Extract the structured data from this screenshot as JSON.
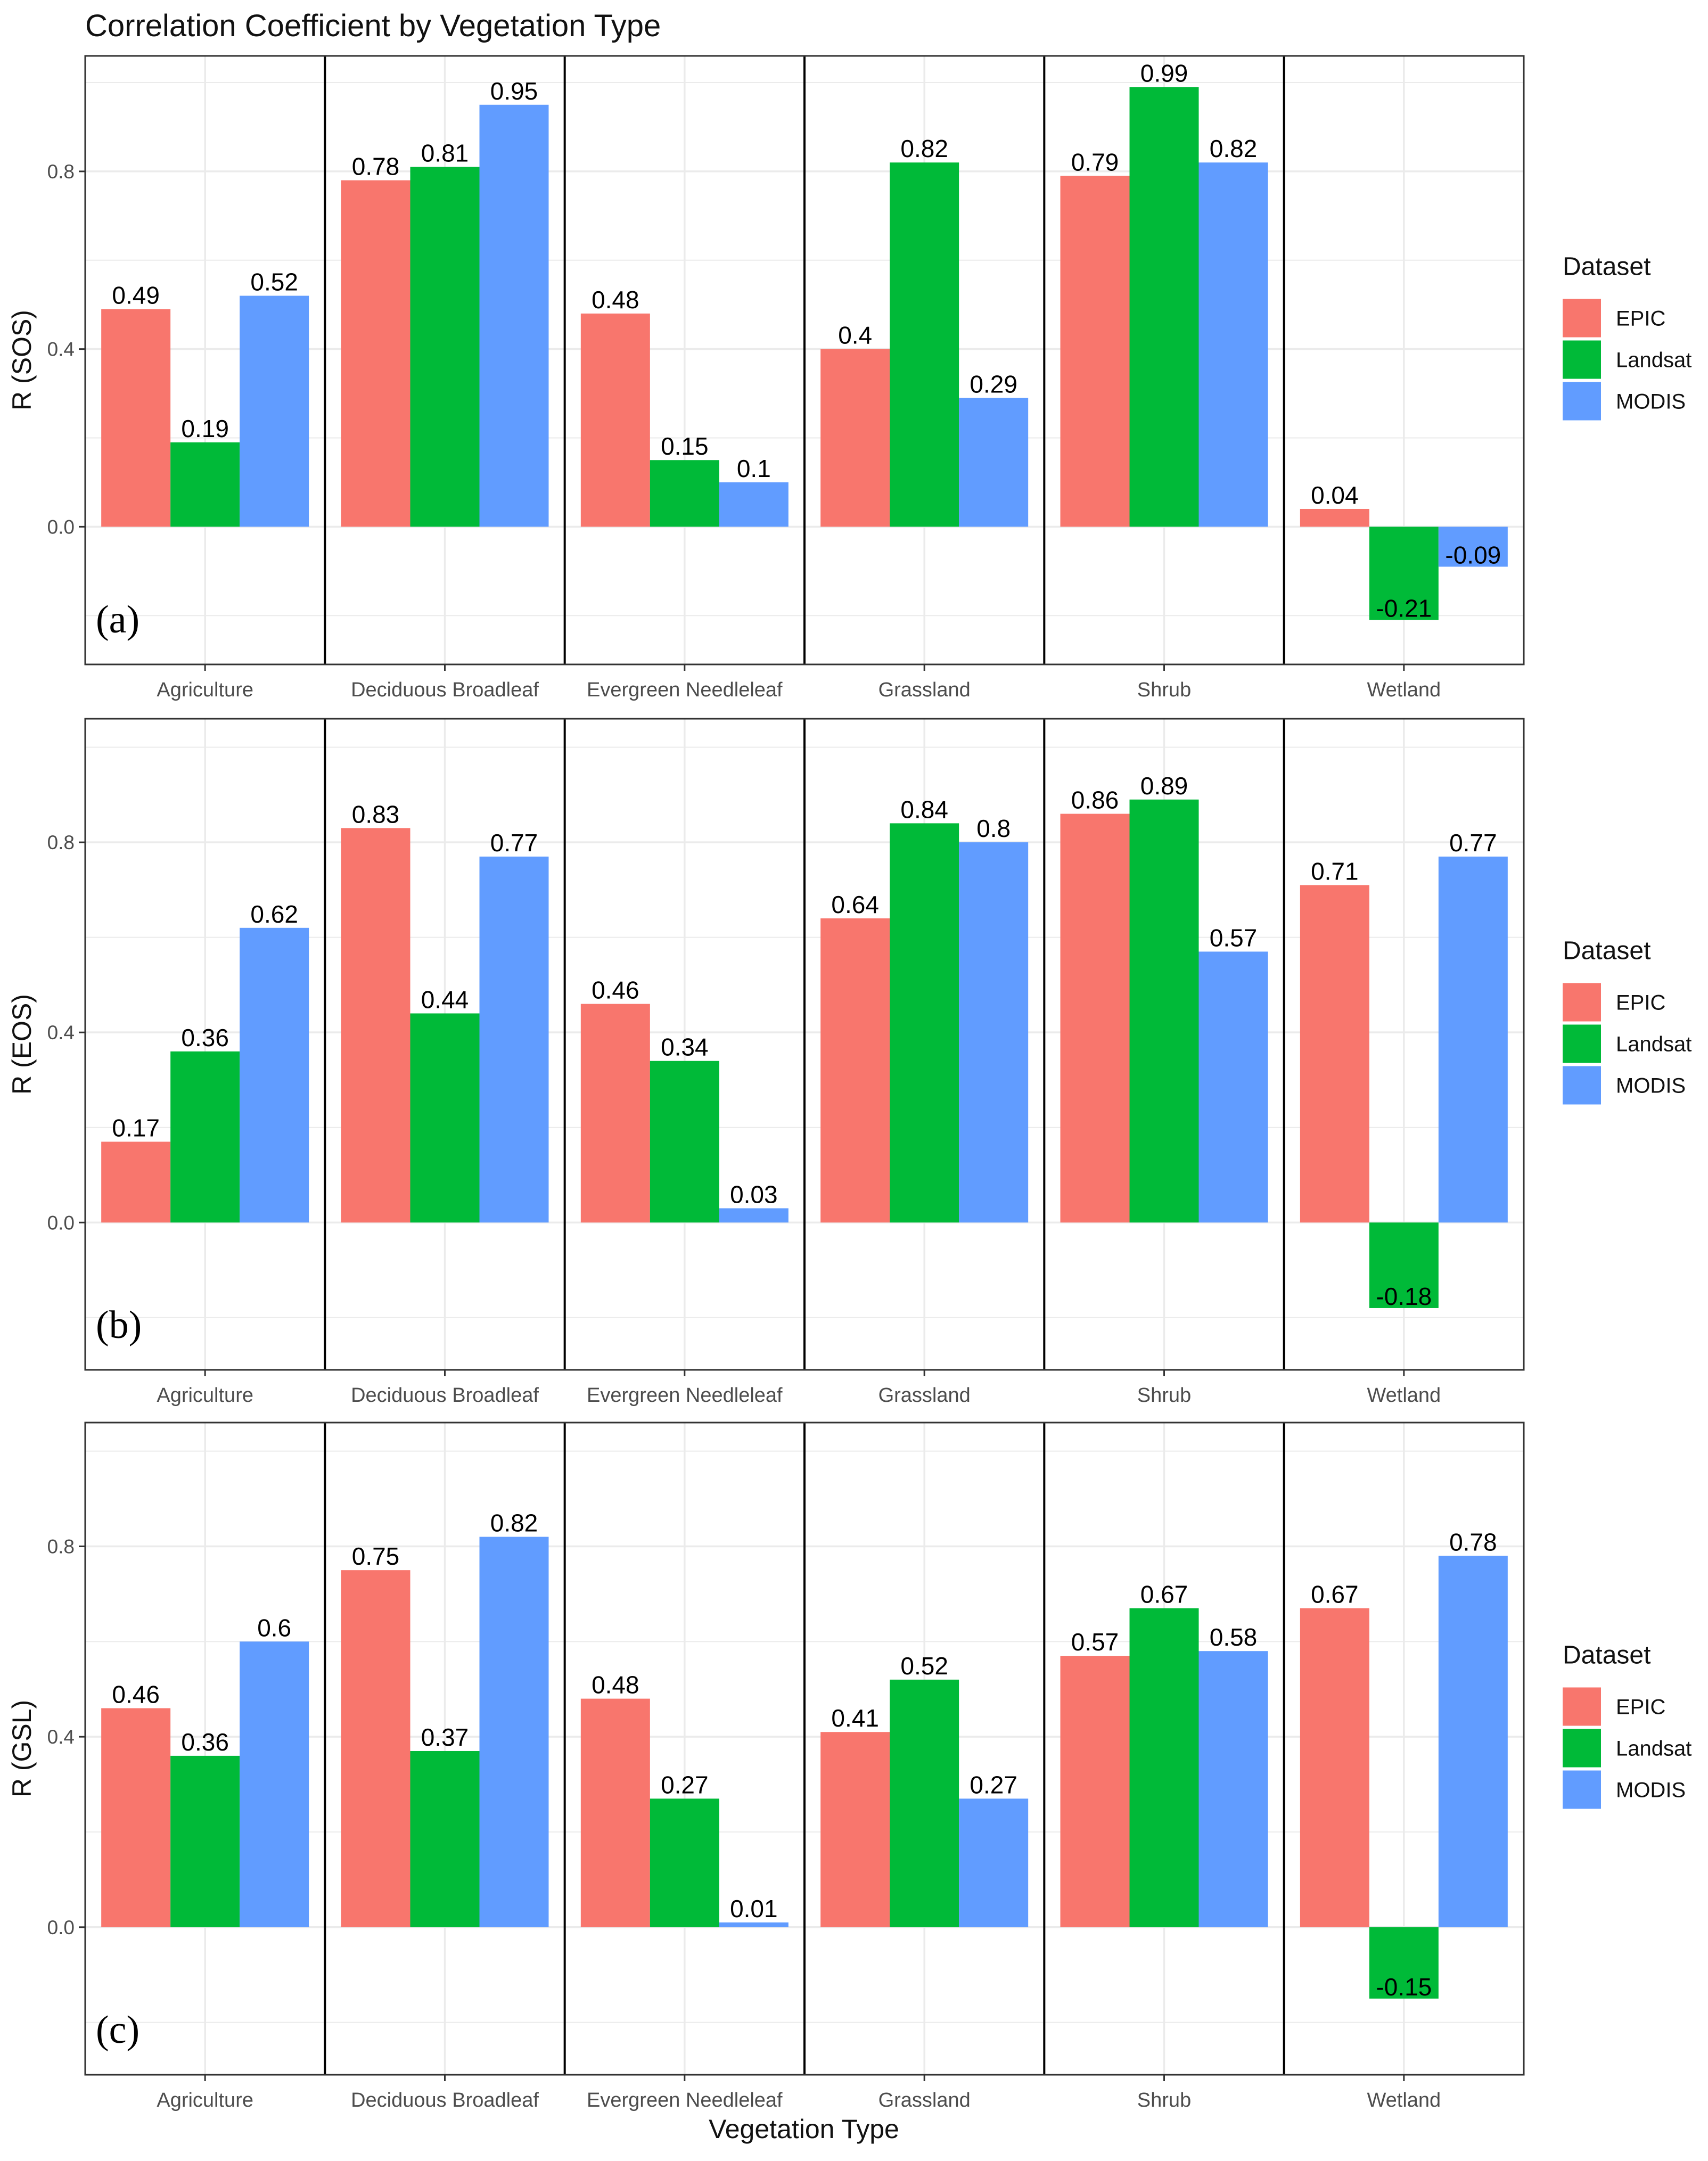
{
  "colors": {
    "EPIC": "#F8766D",
    "Landsat": "#00BA38",
    "MODIS": "#619CFF",
    "grid": "#EBEBEB",
    "panel_border": "#333333",
    "divider": "#000000"
  },
  "chart_data": {
    "type": "bar",
    "title": "Correlation Coefficient by Vegetation Type",
    "xlabel": "Vegetation Type",
    "categories": [
      "Agriculture",
      "Deciduous Broadleaf",
      "Evergreen Needleleaf",
      "Grassland",
      "Shrub",
      "Wetland"
    ],
    "ylim": [
      -0.31,
      1.06
    ],
    "yticks": [
      0.0,
      0.4,
      0.8
    ],
    "ytick_labels": [
      "0.0",
      "0.4",
      "0.8"
    ],
    "grid": true,
    "legend": {
      "title": "Dataset",
      "entries": [
        "EPIC",
        "Landsat",
        "MODIS"
      ],
      "placement": "right"
    },
    "panels": [
      {
        "tag": "(a)",
        "ylabel": "R (SOS)",
        "series": [
          {
            "name": "EPIC",
            "values": [
              0.49,
              0.78,
              0.48,
              0.4,
              0.79,
              0.04
            ],
            "labels": [
              "0.49",
              "0.78",
              "0.48",
              "0.4",
              "0.79",
              "0.04"
            ]
          },
          {
            "name": "Landsat",
            "values": [
              0.19,
              0.81,
              0.15,
              0.82,
              0.99,
              -0.21
            ],
            "labels": [
              "0.19",
              "0.81",
              "0.15",
              "0.82",
              "0.99",
              "-0.21"
            ]
          },
          {
            "name": "MODIS",
            "values": [
              0.52,
              0.95,
              0.1,
              0.29,
              0.82,
              -0.09
            ],
            "labels": [
              "0.52",
              "0.95",
              "0.1",
              "0.29",
              "0.82",
              "-0.09"
            ]
          }
        ]
      },
      {
        "tag": "(b)",
        "ylabel": "R (EOS)",
        "series": [
          {
            "name": "EPIC",
            "values": [
              0.17,
              0.83,
              0.46,
              0.64,
              0.86,
              0.71
            ],
            "labels": [
              "0.17",
              "0.83",
              "0.46",
              "0.64",
              "0.86",
              "0.71"
            ]
          },
          {
            "name": "Landsat",
            "values": [
              0.36,
              0.44,
              0.34,
              0.84,
              0.89,
              -0.18
            ],
            "labels": [
              "0.36",
              "0.44",
              "0.34",
              "0.84",
              "0.89",
              "-0.18"
            ]
          },
          {
            "name": "MODIS",
            "values": [
              0.62,
              0.77,
              0.03,
              0.8,
              0.57,
              0.77
            ],
            "labels": [
              "0.62",
              "0.77",
              "0.03",
              "0.8",
              "0.57",
              "0.77"
            ]
          }
        ]
      },
      {
        "tag": "(c)",
        "ylabel": "R (GSL)",
        "series": [
          {
            "name": "EPIC",
            "values": [
              0.46,
              0.75,
              0.48,
              0.41,
              0.57,
              0.67
            ],
            "labels": [
              "0.46",
              "0.75",
              "0.48",
              "0.41",
              "0.57",
              "0.67"
            ]
          },
          {
            "name": "Landsat",
            "values": [
              0.36,
              0.37,
              0.27,
              0.52,
              0.67,
              -0.15
            ],
            "labels": [
              "0.36",
              "0.37",
              "0.27",
              "0.52",
              "0.67",
              "-0.15"
            ]
          },
          {
            "name": "MODIS",
            "values": [
              0.6,
              0.82,
              0.01,
              0.27,
              0.58,
              0.78
            ],
            "labels": [
              "0.6",
              "0.82",
              "0.01",
              "0.27",
              "0.58",
              "0.78"
            ]
          }
        ]
      }
    ]
  }
}
